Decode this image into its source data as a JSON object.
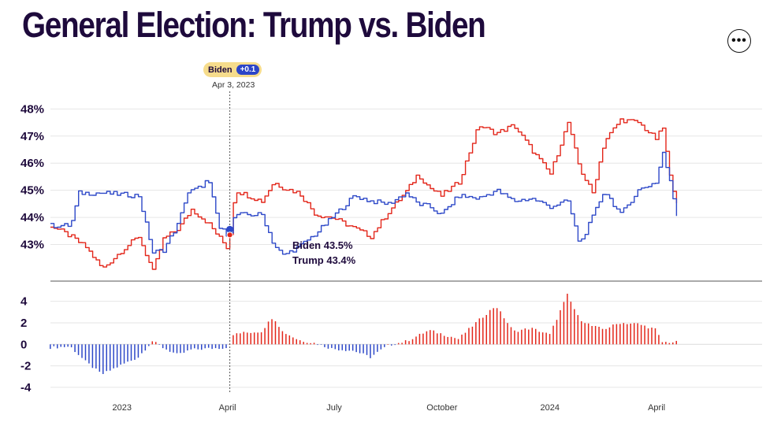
{
  "header": {
    "title": "General Election: Trump vs. Biden",
    "more_icon": "more-dots-icon"
  },
  "tooltip": {
    "leader": "Biden",
    "margin": "+0.1",
    "date": "Apr 3, 2023"
  },
  "hover_labels": {
    "biden": "Biden 43.5%",
    "trump": "Trump 43.4%"
  },
  "colors": {
    "trump": "#e3261a",
    "biden": "#2d48c8",
    "ink": "#1e0a3c",
    "tooltip_bg": "#f6dc8c"
  },
  "chart_data": [
    {
      "type": "line",
      "x_range": [
        "2022-11-01",
        "2024-06-30"
      ],
      "ylim": [
        42,
        48.3
      ],
      "yticks": [
        "48%",
        "47%",
        "46%",
        "45%",
        "44%",
        "43%"
      ],
      "ytick_values": [
        48,
        47,
        46,
        45,
        44,
        43
      ],
      "grid": true,
      "hover_date": "2023-04-03",
      "series": [
        {
          "name": "Biden",
          "x": [
            "2022-11-01",
            "2022-11-18",
            "2022-11-25",
            "2022-12-15",
            "2023-01-15",
            "2023-01-27",
            "2023-02-05",
            "2023-02-18",
            "2023-02-25",
            "2023-03-08",
            "2023-03-15",
            "2023-03-25",
            "2023-03-31",
            "2023-04-03",
            "2023-04-07",
            "2023-04-30",
            "2023-05-10",
            "2023-05-18",
            "2023-05-31",
            "2023-06-15",
            "2023-06-29",
            "2023-07-18",
            "2023-08-01",
            "2023-08-16",
            "2023-08-31",
            "2023-09-10",
            "2023-09-20",
            "2023-09-30",
            "2023-10-15",
            "2023-11-01",
            "2023-11-16",
            "2023-12-01",
            "2023-12-16",
            "2024-01-01",
            "2024-01-16",
            "2024-01-26",
            "2024-02-06",
            "2024-02-16",
            "2024-03-01",
            "2024-03-16",
            "2024-03-31",
            "2024-04-06",
            "2024-04-12",
            "2024-04-18"
          ],
          "values": [
            43.7,
            43.7,
            44.9,
            44.9,
            44.8,
            42.7,
            42.8,
            43.8,
            44.9,
            45.1,
            45.4,
            43.6,
            43.4,
            43.5,
            44.1,
            44.1,
            43.0,
            42.6,
            42.9,
            43.4,
            44.0,
            44.8,
            44.6,
            44.5,
            44.9,
            44.5,
            44.4,
            44.1,
            44.8,
            44.7,
            45.0,
            44.6,
            44.7,
            44.4,
            44.6,
            43.0,
            44.0,
            45.0,
            44.1,
            45.0,
            45.3,
            46.4,
            45.3,
            44.1
          ]
        },
        {
          "name": "Trump",
          "x": [
            "2022-11-01",
            "2022-11-18",
            "2022-12-01",
            "2022-12-15",
            "2023-01-01",
            "2023-01-15",
            "2023-01-27",
            "2023-02-05",
            "2023-02-18",
            "2023-03-01",
            "2023-03-15",
            "2023-03-31",
            "2023-04-03",
            "2023-04-07",
            "2023-04-30",
            "2023-05-10",
            "2023-05-18",
            "2023-06-01",
            "2023-06-15",
            "2023-06-29",
            "2023-07-18",
            "2023-08-01",
            "2023-08-16",
            "2023-09-01",
            "2023-09-10",
            "2023-09-20",
            "2023-09-30",
            "2023-10-15",
            "2023-11-01",
            "2023-11-16",
            "2023-12-01",
            "2023-12-16",
            "2024-01-01",
            "2024-01-16",
            "2024-01-26",
            "2024-02-06",
            "2024-02-16",
            "2024-03-01",
            "2024-03-16",
            "2024-03-31",
            "2024-04-06",
            "2024-04-12",
            "2024-04-18"
          ],
          "values": [
            43.7,
            43.3,
            42.9,
            42.1,
            42.8,
            43.3,
            42.0,
            43.2,
            43.6,
            44.3,
            43.8,
            42.9,
            43.4,
            45.0,
            44.6,
            45.3,
            45.1,
            44.9,
            44.1,
            44.0,
            43.6,
            43.3,
            44.2,
            45.0,
            45.6,
            45.1,
            44.8,
            45.3,
            47.4,
            47.1,
            47.4,
            46.5,
            45.6,
            47.5,
            45.8,
            44.9,
            46.8,
            47.6,
            47.5,
            46.9,
            47.3,
            45.5,
            44.6
          ]
        }
      ]
    },
    {
      "type": "bar",
      "ylim": [
        -4.3,
        5
      ],
      "yticks": [
        "4",
        "2",
        "0",
        "-2",
        "-4"
      ],
      "ytick_values": [
        4,
        2,
        0,
        -2,
        -4
      ],
      "grid": true,
      "note": "positive = Trump lead (red), negative = Biden lead (blue)",
      "x": [
        "2022-11-01",
        "2022-11-18",
        "2022-12-01",
        "2022-12-15",
        "2023-01-01",
        "2023-01-15",
        "2023-01-27",
        "2023-02-05",
        "2023-02-18",
        "2023-03-01",
        "2023-03-15",
        "2023-03-31",
        "2023-04-03",
        "2023-04-07",
        "2023-04-30",
        "2023-05-10",
        "2023-05-18",
        "2023-06-01",
        "2023-06-15",
        "2023-06-29",
        "2023-07-18",
        "2023-08-01",
        "2023-08-16",
        "2023-09-01",
        "2023-09-20",
        "2023-09-30",
        "2023-10-15",
        "2023-11-01",
        "2023-11-16",
        "2023-12-01",
        "2023-12-16",
        "2024-01-01",
        "2024-01-16",
        "2024-01-26",
        "2024-02-06",
        "2024-02-16",
        "2024-03-01",
        "2024-03-16",
        "2024-03-31",
        "2024-04-06",
        "2024-04-18"
      ],
      "values": [
        -0.3,
        -0.2,
        -1.6,
        -2.8,
        -1.9,
        -1.2,
        0.3,
        -0.3,
        -1.0,
        -0.5,
        -0.4,
        -0.3,
        0.1,
        1.0,
        1.2,
        2.6,
        1.2,
        0.4,
        0.1,
        -0.4,
        -0.6,
        -1.2,
        -0.1,
        0.3,
        1.3,
        1.0,
        0.5,
        2.2,
        3.6,
        1.2,
        1.5,
        0.9,
        4.6,
        2.4,
        1.7,
        1.4,
        2.0,
        1.9,
        1.4,
        0.2,
        0.2
      ],
      "x_ticks": [
        "2023",
        "April",
        "July",
        "October",
        "2024",
        "April"
      ],
      "x_tick_dates": [
        "2023-01-01",
        "2023-04-01",
        "2023-07-01",
        "2023-10-01",
        "2024-01-01",
        "2024-04-01"
      ]
    }
  ]
}
